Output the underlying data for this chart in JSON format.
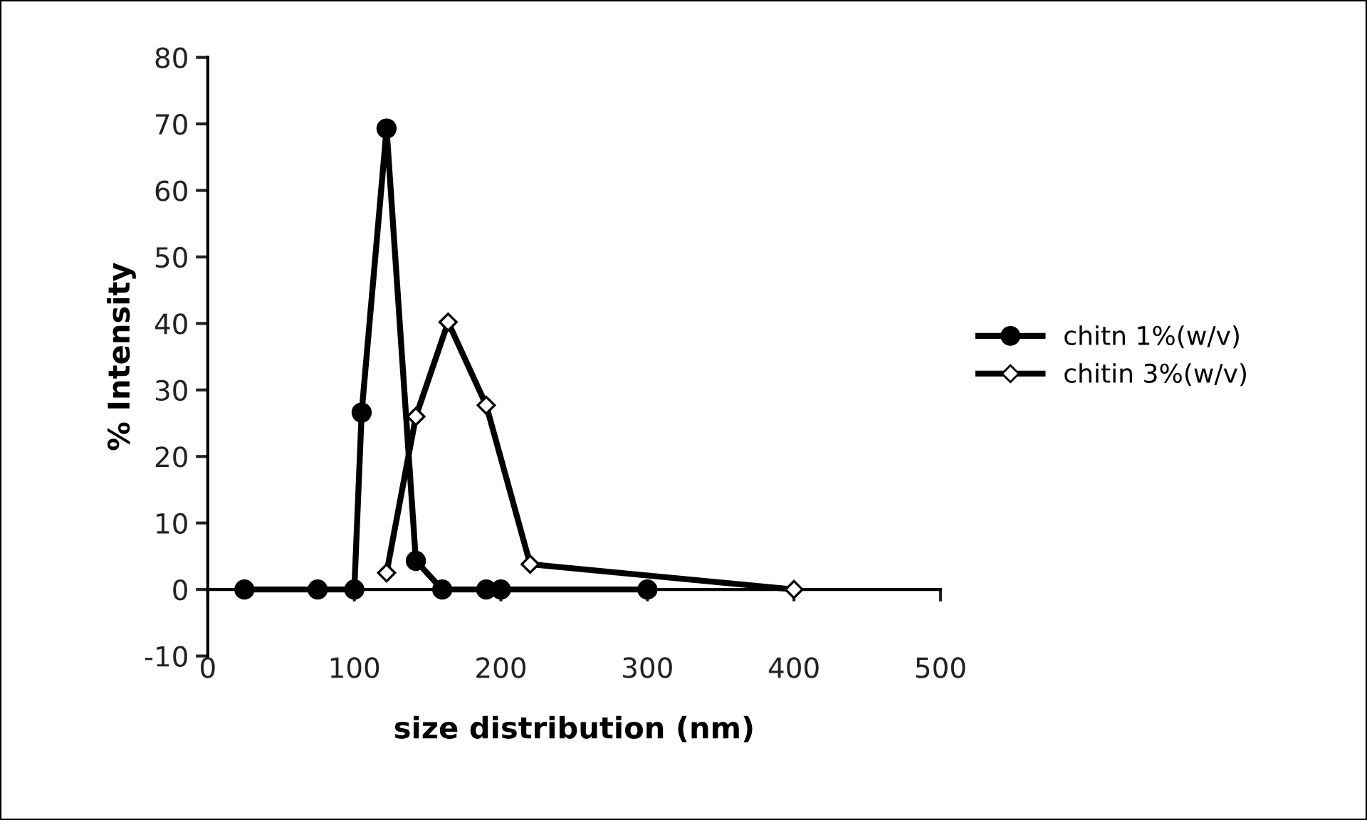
{
  "chart_data": {
    "type": "line",
    "xlabel": "size distribution (nm)",
    "ylabel": "% Intensity",
    "xlim": [
      0,
      500
    ],
    "xticks": [
      0,
      100,
      200,
      300,
      400,
      500
    ],
    "ylim": [
      -10,
      80
    ],
    "yticks": [
      -10,
      0,
      10,
      20,
      30,
      40,
      50,
      60,
      70,
      80
    ],
    "grid": false,
    "legend": "right",
    "series": [
      {
        "name": "chitn 1%(w/v)",
        "color": "#000000",
        "marker": "circle",
        "x": [
          25,
          75,
          100,
          105,
          122,
          142,
          160,
          190,
          200,
          300
        ],
        "values": [
          0,
          0,
          0,
          26.6,
          69.3,
          4.3,
          0,
          0,
          0,
          0
        ]
      },
      {
        "name": "chitin 3%(w/v)",
        "color": "#000000",
        "marker": "diamond",
        "x": [
          122,
          142,
          164,
          190,
          220,
          400
        ],
        "values": [
          2.5,
          26,
          40.2,
          27.7,
          3.8,
          0
        ]
      }
    ]
  }
}
